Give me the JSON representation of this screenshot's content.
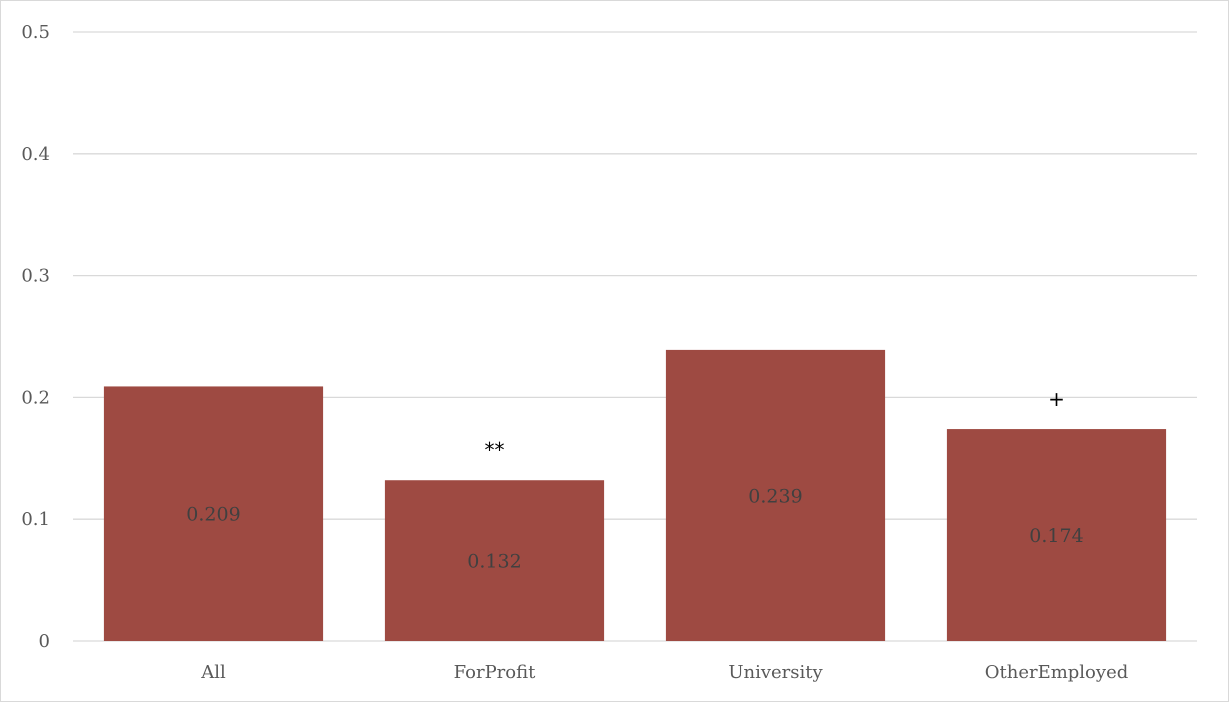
{
  "chart_data": {
    "type": "bar",
    "title": "",
    "xlabel": "",
    "ylabel": "",
    "categories": [
      "All",
      "ForProfit",
      "University",
      "OtherEmployed"
    ],
    "values": [
      0.209,
      0.132,
      0.239,
      0.174
    ],
    "value_labels": [
      "0.209",
      "0.132",
      "0.239",
      "0.174"
    ],
    "annotations": [
      "",
      "**",
      "",
      "+"
    ],
    "ylim": [
      0,
      0.5
    ],
    "yticks": [
      0,
      0.1,
      0.2,
      0.3,
      0.4,
      0.5
    ],
    "ytick_labels": [
      "0",
      "0.1",
      "0.2",
      "0.3",
      "0.4",
      "0.5"
    ],
    "grid": true,
    "legend": "none",
    "bar_color": "#9e4a42",
    "grid_color": "#d9d9d9"
  }
}
